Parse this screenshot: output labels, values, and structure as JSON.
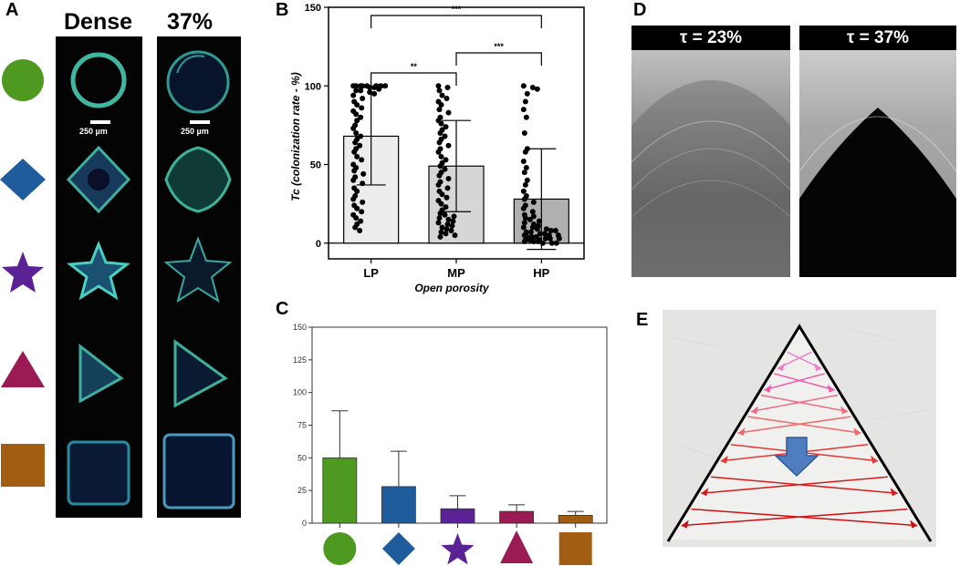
{
  "panels": {
    "A": "A",
    "B": "B",
    "C": "C",
    "D": "D",
    "E": "E"
  },
  "panel_a": {
    "col_dense": "Dense",
    "col_porous": "37%",
    "scale_label": "250 µm",
    "shapes": [
      "circle",
      "diamond",
      "star",
      "triangle",
      "square"
    ],
    "colors": {
      "circle": "#4e9a21",
      "diamond": "#1f5c9c",
      "star": "#5b2296",
      "triangle": "#9b1b55",
      "square": "#a35d13"
    }
  },
  "panel_d": {
    "left_label": "τ = 23%",
    "right_label": "τ = 37%"
  },
  "chart_data": [
    {
      "type": "bar",
      "panel": "B",
      "categories": [
        "LP",
        "MP",
        "HP"
      ],
      "values": [
        68,
        49,
        28
      ],
      "sd": [
        31,
        29,
        32
      ],
      "xlabel": "Open porosity",
      "ylabel": "Tc (colonization rate - %)",
      "ylim": [
        -10,
        150
      ],
      "yticks": [
        0,
        50,
        100,
        150
      ],
      "significance": [
        {
          "from": "LP",
          "to": "MP",
          "label": "**"
        },
        {
          "from": "LP",
          "to": "HP",
          "label": "***"
        },
        {
          "from": "MP",
          "to": "HP",
          "label": "***"
        }
      ],
      "points": {
        "LP": [
          100,
          100,
          100,
          100,
          100,
          100,
          100,
          100,
          99,
          99,
          98,
          97,
          97,
          96,
          95,
          94,
          92,
          90,
          88,
          86,
          84,
          82,
          80,
          78,
          75,
          73,
          70,
          68,
          66,
          64,
          62,
          60,
          58,
          55,
          53,
          50,
          48,
          46,
          44,
          42,
          40,
          38,
          35,
          33,
          30,
          28,
          26,
          24,
          22,
          20,
          18,
          16,
          14,
          12,
          10,
          8
        ],
        "MP": [
          100,
          99,
          97,
          94,
          92,
          90,
          88,
          85,
          83,
          80,
          78,
          76,
          74,
          72,
          70,
          68,
          66,
          64,
          62,
          60,
          58,
          55,
          53,
          51,
          49,
          47,
          45,
          43,
          41,
          39,
          37,
          35,
          33,
          31,
          29,
          27,
          25,
          23,
          21,
          19,
          18,
          17,
          16,
          15,
          14,
          13,
          12,
          11,
          10,
          9,
          8,
          7,
          6,
          5,
          4
        ],
        "HP": [
          100,
          99,
          98,
          95,
          90,
          85,
          80,
          70,
          60,
          58,
          52,
          48,
          45,
          40,
          37,
          33,
          30,
          28,
          26,
          24,
          22,
          20,
          18,
          17,
          16,
          15,
          14,
          13,
          12,
          11,
          10,
          10,
          9,
          9,
          8,
          8,
          7,
          7,
          6,
          6,
          5,
          5,
          5,
          4,
          4,
          4,
          3,
          3,
          3,
          2,
          2,
          2,
          1,
          1,
          1,
          0,
          0,
          0
        ]
      }
    },
    {
      "type": "bar",
      "panel": "C",
      "categories": [
        "circle",
        "diamond",
        "star",
        "triangle",
        "square"
      ],
      "values": [
        50,
        28,
        11,
        9,
        6
      ],
      "sd": [
        36,
        27,
        10,
        5,
        3
      ],
      "colors": [
        "#4e9a21",
        "#1f5c9c",
        "#5b2296",
        "#9b1b55",
        "#a35d13"
      ],
      "ylim": [
        0,
        150
      ],
      "yticks": [
        "0",
        "25",
        "50",
        "75",
        "100",
        "125",
        "150"
      ]
    }
  ]
}
